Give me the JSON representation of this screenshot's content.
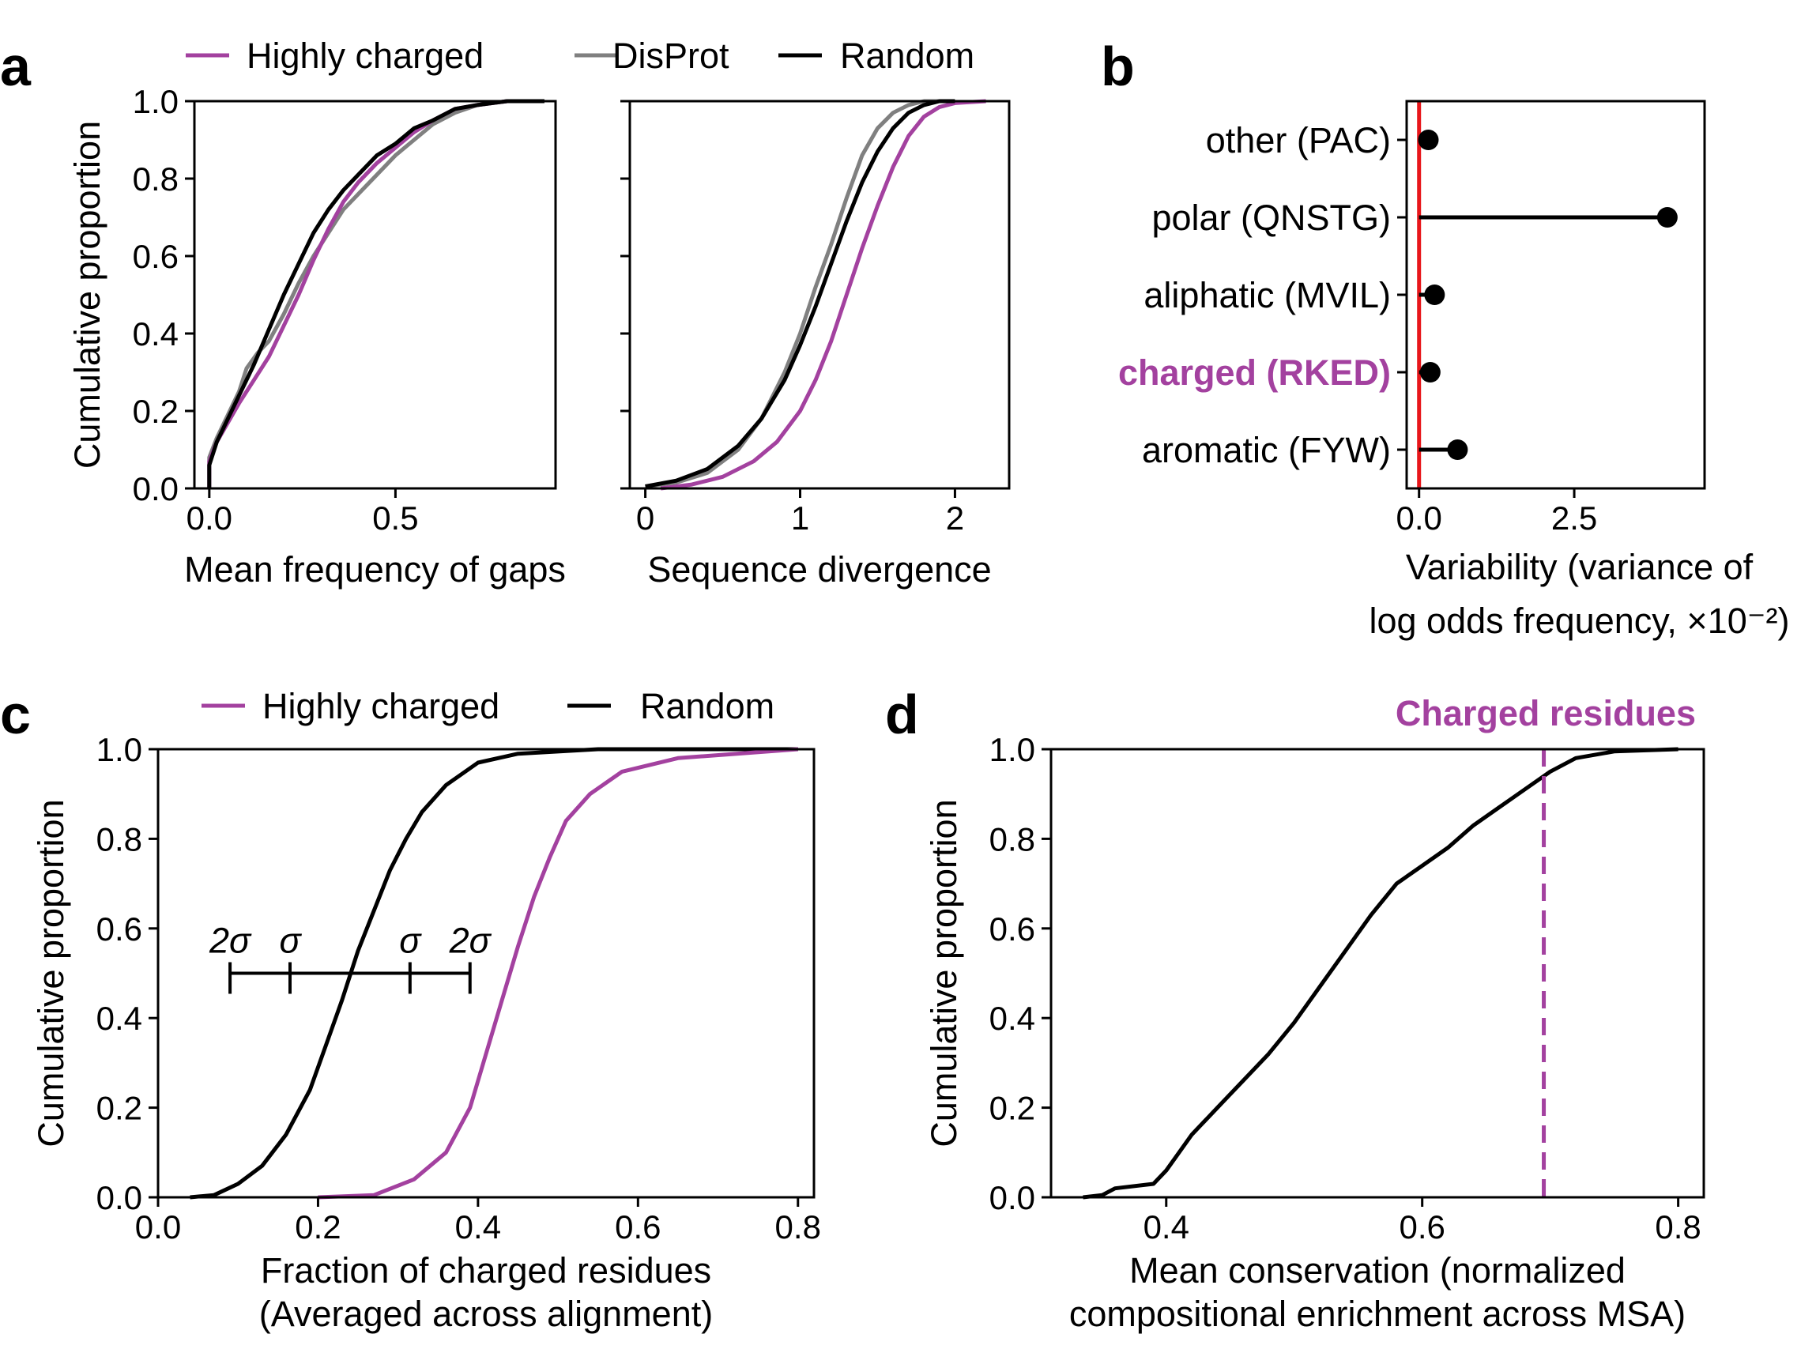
{
  "colors": {
    "charged": "#a3419f",
    "disprot": "#808080",
    "random": "#000000",
    "zero_line": "#e8161a"
  },
  "panels": [
    {
      "letter": "a"
    },
    {
      "letter": "b"
    },
    {
      "letter": "c"
    },
    {
      "letter": "d"
    }
  ],
  "legend_a": [
    "Highly charged",
    "DisProt",
    "Random"
  ],
  "legend_c": [
    "Highly charged",
    "Random"
  ],
  "chart_data": [
    {
      "id": "a1",
      "type": "line",
      "xlabel": "Mean frequency of gaps",
      "ylabel": "Cumulative proportion",
      "xlim": [
        -0.04,
        0.93
      ],
      "ylim": [
        0,
        1
      ],
      "xticks": [
        {
          "v": 0,
          "label": "0.0"
        },
        {
          "v": 0.5,
          "label": "0.5"
        }
      ],
      "yticks": [
        {
          "v": 0,
          "label": "0.0"
        },
        {
          "v": 0.2,
          "label": "0.2"
        },
        {
          "v": 0.4,
          "label": "0.4"
        },
        {
          "v": 0.6,
          "label": "0.6"
        },
        {
          "v": 0.8,
          "label": "0.8"
        },
        {
          "v": 1.0,
          "label": "1.0"
        }
      ],
      "series": [
        {
          "name": "DisProt",
          "color": "#808080",
          "x": [
            0,
            0,
            0.02,
            0.05,
            0.08,
            0.1,
            0.13,
            0.16,
            0.2,
            0.24,
            0.28,
            0.32,
            0.36,
            0.4,
            0.45,
            0.5,
            0.55,
            0.6,
            0.66,
            0.72,
            0.8,
            0.9
          ],
          "y": [
            0,
            0.08,
            0.13,
            0.19,
            0.25,
            0.31,
            0.35,
            0.38,
            0.45,
            0.53,
            0.6,
            0.66,
            0.72,
            0.76,
            0.81,
            0.86,
            0.9,
            0.94,
            0.97,
            0.99,
            1.0,
            1.0
          ]
        },
        {
          "name": "Highly charged",
          "color": "#a3419f",
          "x": [
            0,
            0,
            0.02,
            0.05,
            0.08,
            0.12,
            0.16,
            0.2,
            0.24,
            0.28,
            0.32,
            0.36,
            0.4,
            0.45,
            0.5,
            0.55,
            0.6,
            0.66,
            0.72,
            0.8
          ],
          "y": [
            0,
            0.07,
            0.12,
            0.17,
            0.22,
            0.28,
            0.34,
            0.42,
            0.5,
            0.59,
            0.67,
            0.74,
            0.79,
            0.84,
            0.88,
            0.92,
            0.95,
            0.98,
            0.99,
            1.0
          ]
        },
        {
          "name": "Random",
          "color": "#000000",
          "x": [
            0,
            0,
            0.02,
            0.05,
            0.08,
            0.12,
            0.16,
            0.2,
            0.24,
            0.28,
            0.32,
            0.36,
            0.4,
            0.45,
            0.5,
            0.55,
            0.6,
            0.66,
            0.72,
            0.8,
            0.9
          ],
          "y": [
            0,
            0.06,
            0.12,
            0.18,
            0.24,
            0.32,
            0.41,
            0.5,
            0.58,
            0.66,
            0.72,
            0.77,
            0.81,
            0.86,
            0.89,
            0.93,
            0.95,
            0.98,
            0.99,
            1.0,
            1.0
          ]
        }
      ]
    },
    {
      "id": "a2",
      "type": "line",
      "xlabel": "Sequence divergence",
      "ylabel": "",
      "xlim": [
        -0.1,
        2.35
      ],
      "ylim": [
        0,
        1
      ],
      "xticks": [
        {
          "v": 0,
          "label": "0"
        },
        {
          "v": 1,
          "label": "1"
        },
        {
          "v": 2,
          "label": "2"
        }
      ],
      "yticks": [
        {
          "v": 0,
          "label": ""
        },
        {
          "v": 0.2,
          "label": ""
        },
        {
          "v": 0.4,
          "label": ""
        },
        {
          "v": 0.6,
          "label": ""
        },
        {
          "v": 0.8,
          "label": ""
        },
        {
          "v": 1.0,
          "label": ""
        }
      ],
      "series": [
        {
          "name": "DisProt",
          "color": "#808080",
          "x": [
            0,
            0.2,
            0.4,
            0.6,
            0.75,
            0.9,
            1.0,
            1.1,
            1.2,
            1.3,
            1.4,
            1.5,
            1.6,
            1.7,
            1.8,
            1.9
          ],
          "y": [
            0.005,
            0.015,
            0.04,
            0.1,
            0.18,
            0.3,
            0.4,
            0.52,
            0.63,
            0.75,
            0.86,
            0.93,
            0.97,
            0.99,
            1.0,
            1.0
          ]
        },
        {
          "name": "Highly charged",
          "color": "#a3419f",
          "x": [
            0.1,
            0.3,
            0.5,
            0.7,
            0.85,
            1.0,
            1.1,
            1.2,
            1.3,
            1.4,
            1.5,
            1.6,
            1.7,
            1.8,
            1.9,
            2.0,
            2.2
          ],
          "y": [
            0,
            0.01,
            0.03,
            0.07,
            0.12,
            0.2,
            0.28,
            0.38,
            0.5,
            0.62,
            0.73,
            0.83,
            0.91,
            0.96,
            0.985,
            0.995,
            1.0
          ]
        },
        {
          "name": "Random",
          "color": "#000000",
          "x": [
            0,
            0.2,
            0.4,
            0.6,
            0.75,
            0.9,
            1.0,
            1.1,
            1.2,
            1.3,
            1.4,
            1.5,
            1.6,
            1.7,
            1.8,
            1.9,
            2.0
          ],
          "y": [
            0.005,
            0.02,
            0.05,
            0.11,
            0.18,
            0.28,
            0.37,
            0.47,
            0.58,
            0.69,
            0.79,
            0.87,
            0.93,
            0.97,
            0.99,
            1.0,
            1.0
          ]
        }
      ]
    },
    {
      "id": "b",
      "type": "dot",
      "xlabel_lines": [
        "Variability (variance of",
        "log odds frequency, ×10⁻²)"
      ],
      "xlim": [
        -0.2,
        4.6
      ],
      "xticks": [
        {
          "v": 0,
          "label": "0.0"
        },
        {
          "v": 2.5,
          "label": "2.5"
        }
      ],
      "categories": [
        "other (PAC)",
        "polar (QNSTG)",
        "aliphatic (MVIL)",
        "charged (RKED)",
        "aromatic (FYW)"
      ],
      "highlight_category": "charged (RKED)",
      "values": [
        0.15,
        4.0,
        0.25,
        0.18,
        0.62
      ]
    },
    {
      "id": "c",
      "type": "line",
      "xlabel_lines": [
        "Fraction of charged residues",
        "(Averaged across alignment)"
      ],
      "ylabel": "Cumulative proportion",
      "xlim": [
        0,
        0.82
      ],
      "ylim": [
        0,
        1
      ],
      "xticks": [
        {
          "v": 0,
          "label": "0.0"
        },
        {
          "v": 0.2,
          "label": "0.2"
        },
        {
          "v": 0.4,
          "label": "0.4"
        },
        {
          "v": 0.6,
          "label": "0.6"
        },
        {
          "v": 0.8,
          "label": "0.8"
        }
      ],
      "yticks": [
        {
          "v": 0,
          "label": "0.0"
        },
        {
          "v": 0.2,
          "label": "0.2"
        },
        {
          "v": 0.4,
          "label": "0.4"
        },
        {
          "v": 0.6,
          "label": "0.6"
        },
        {
          "v": 0.8,
          "label": "0.8"
        },
        {
          "v": 1.0,
          "label": "1.0"
        }
      ],
      "series": [
        {
          "name": "Random",
          "color": "#000000",
          "x": [
            0.04,
            0.07,
            0.1,
            0.13,
            0.16,
            0.19,
            0.21,
            0.23,
            0.25,
            0.27,
            0.29,
            0.31,
            0.33,
            0.36,
            0.4,
            0.45,
            0.55,
            0.8
          ],
          "y": [
            0,
            0.005,
            0.03,
            0.07,
            0.14,
            0.24,
            0.34,
            0.44,
            0.55,
            0.64,
            0.73,
            0.8,
            0.86,
            0.92,
            0.97,
            0.99,
            1.0,
            1.0
          ]
        },
        {
          "name": "Highly charged",
          "color": "#a3419f",
          "x": [
            0.2,
            0.27,
            0.32,
            0.36,
            0.39,
            0.41,
            0.43,
            0.45,
            0.47,
            0.49,
            0.51,
            0.54,
            0.58,
            0.65,
            0.8
          ],
          "y": [
            0,
            0.005,
            0.04,
            0.1,
            0.2,
            0.32,
            0.44,
            0.56,
            0.67,
            0.76,
            0.84,
            0.9,
            0.95,
            0.98,
            1.0
          ]
        }
      ],
      "annotation": {
        "y": 0.5,
        "ticks": [
          {
            "x": 0.09,
            "label": "2σ"
          },
          {
            "x": 0.165,
            "label": "σ"
          },
          {
            "x": 0.315,
            "label": "σ"
          },
          {
            "x": 0.39,
            "label": "2σ"
          }
        ]
      }
    },
    {
      "id": "d",
      "type": "line",
      "xlabel_lines": [
        "Mean conservation (normalized",
        "compositional enrichment across MSA)"
      ],
      "ylabel": "Cumulative proportion",
      "xlim": [
        0.31,
        0.82
      ],
      "ylim": [
        0,
        1
      ],
      "xticks": [
        {
          "v": 0.4,
          "label": "0.4"
        },
        {
          "v": 0.6,
          "label": "0.6"
        },
        {
          "v": 0.8,
          "label": "0.8"
        }
      ],
      "yticks": [
        {
          "v": 0,
          "label": "0.0"
        },
        {
          "v": 0.2,
          "label": "0.2"
        },
        {
          "v": 0.4,
          "label": "0.4"
        },
        {
          "v": 0.6,
          "label": "0.6"
        },
        {
          "v": 0.8,
          "label": "0.8"
        },
        {
          "v": 1.0,
          "label": "1.0"
        }
      ],
      "series": [
        {
          "name": "",
          "color": "#000000",
          "x": [
            0.335,
            0.35,
            0.36,
            0.39,
            0.4,
            0.41,
            0.42,
            0.44,
            0.46,
            0.48,
            0.5,
            0.52,
            0.54,
            0.56,
            0.58,
            0.6,
            0.62,
            0.64,
            0.66,
            0.68,
            0.7,
            0.72,
            0.75,
            0.8
          ],
          "y": [
            0,
            0.005,
            0.02,
            0.03,
            0.06,
            0.1,
            0.14,
            0.2,
            0.26,
            0.32,
            0.39,
            0.47,
            0.55,
            0.63,
            0.7,
            0.74,
            0.78,
            0.83,
            0.87,
            0.91,
            0.95,
            0.98,
            0.995,
            1.0
          ]
        }
      ],
      "vline": {
        "x": 0.695,
        "label": "Charged residues"
      }
    }
  ]
}
